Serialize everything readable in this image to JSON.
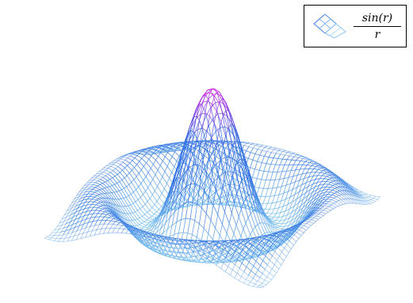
{
  "chart_data": {
    "type": "surface-wireframe",
    "function": "sin(r)/r",
    "x": {
      "min": -8,
      "max": 8,
      "steps": 48
    },
    "y": {
      "min": -8,
      "max": 8,
      "steps": 48
    },
    "z_range": [
      -0.22,
      1.0
    ],
    "legend": {
      "numerator": "sin(r)",
      "denominator": "r",
      "placement": "top-right"
    },
    "colormap": {
      "low": "#7ec4f0",
      "mid": "#2f6fe0",
      "high": "#d020e8"
    }
  }
}
